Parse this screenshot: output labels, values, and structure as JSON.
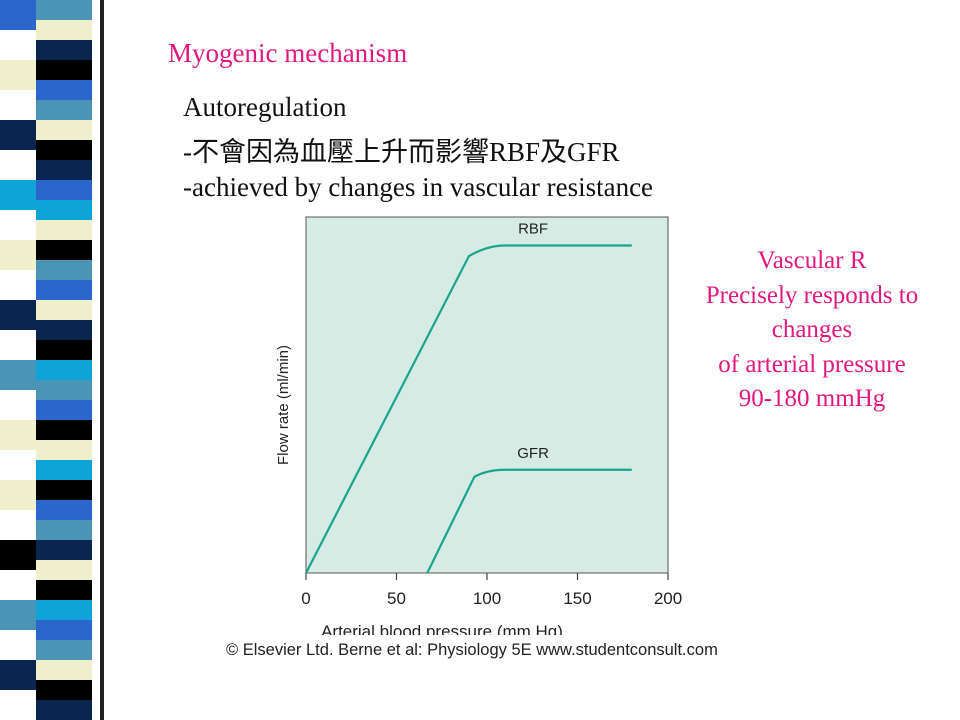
{
  "slide": {
    "title": "Myogenic mechanism",
    "line1": "Autoregulation",
    "line2": "-不會因為血壓上升而影響RBF及GFR",
    "line3": "-achieved by changes in vascular resistance",
    "note": [
      "Vascular R",
      "Precisely responds to",
      "changes",
      "of arterial pressure",
      "90-180 mmHg"
    ],
    "copyright": "© Elsevier Ltd. Berne et al: Physiology 5E www.studentconsult.com"
  },
  "colors": {
    "accent": "#e0187f",
    "plot_bg": "#d5ebe4",
    "curve": "#1aa48f",
    "stripe": [
      "#000000",
      "#4a95b5",
      "#f0f0cc",
      "#2a66cc",
      "#0a2650",
      "#0fa4d8"
    ]
  },
  "chart_data": {
    "type": "line",
    "xlabel": "Arterial blood pressure (mm Hg)",
    "ylabel": "Flow rate (ml/min)",
    "xlim": [
      0,
      200
    ],
    "xticks": [
      0,
      50,
      100,
      150,
      200
    ],
    "y_ticks_shown": false,
    "grid": false,
    "series": [
      {
        "name": "RBF",
        "x": [
          0,
          90,
          100,
          110,
          180
        ],
        "y": [
          0,
          89,
          92,
          92,
          92
        ]
      },
      {
        "name": "GFR",
        "x": [
          67,
          93,
          100,
          110,
          180
        ],
        "y": [
          0,
          27,
          28.5,
          29,
          29
        ]
      }
    ]
  }
}
